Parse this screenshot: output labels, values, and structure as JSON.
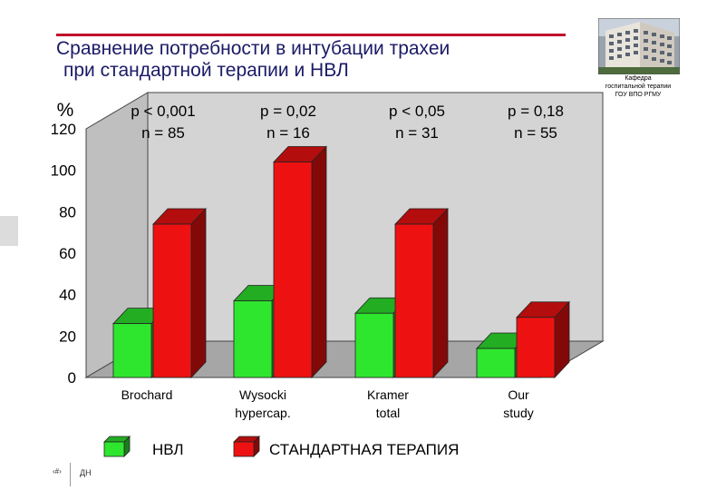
{
  "slide": {
    "title_line1": "Сравнение потребности в интубации трахеи",
    "title_line2": "при стандартной терапии и НВЛ",
    "logo_caption": [
      "Кафедра",
      "госпитальной терапии",
      "ГОУ ВПО РГМУ"
    ],
    "footer_number": "‹#›",
    "footer_text": "ДН"
  },
  "colors": {
    "nvl": "#2fe62f",
    "standard": "#ee1111",
    "title": "#1a1a66",
    "title_rule": "#c0112a",
    "wall": "#d4d4d4"
  },
  "chart_data": {
    "type": "bar",
    "three_d": true,
    "ylabel": "%",
    "ylim": [
      0,
      120
    ],
    "yticks": [
      0,
      20,
      40,
      60,
      80,
      100,
      120
    ],
    "categories": [
      "Brochard",
      "Wysocki hypercap.",
      "Kramer total",
      "Our study"
    ],
    "category_lines": [
      [
        "Brochard"
      ],
      [
        "Wysocki",
        "hypercap."
      ],
      [
        "Kramer",
        "total"
      ],
      [
        "Our",
        "study"
      ]
    ],
    "series": [
      {
        "name": "НВЛ",
        "values": [
          26,
          37,
          31,
          14
        ]
      },
      {
        "name": "СТАНДАРТНАЯ ТЕРАПИЯ",
        "values": [
          74,
          104,
          74,
          29
        ]
      }
    ],
    "annotations": [
      [
        "p < 0,001",
        "n = 85"
      ],
      [
        "p = 0,02",
        "n = 16"
      ],
      [
        "p < 0,05",
        "n = 31"
      ],
      [
        "p = 0,18",
        "n = 55"
      ]
    ],
    "legend_position": "bottom",
    "grid": false
  }
}
